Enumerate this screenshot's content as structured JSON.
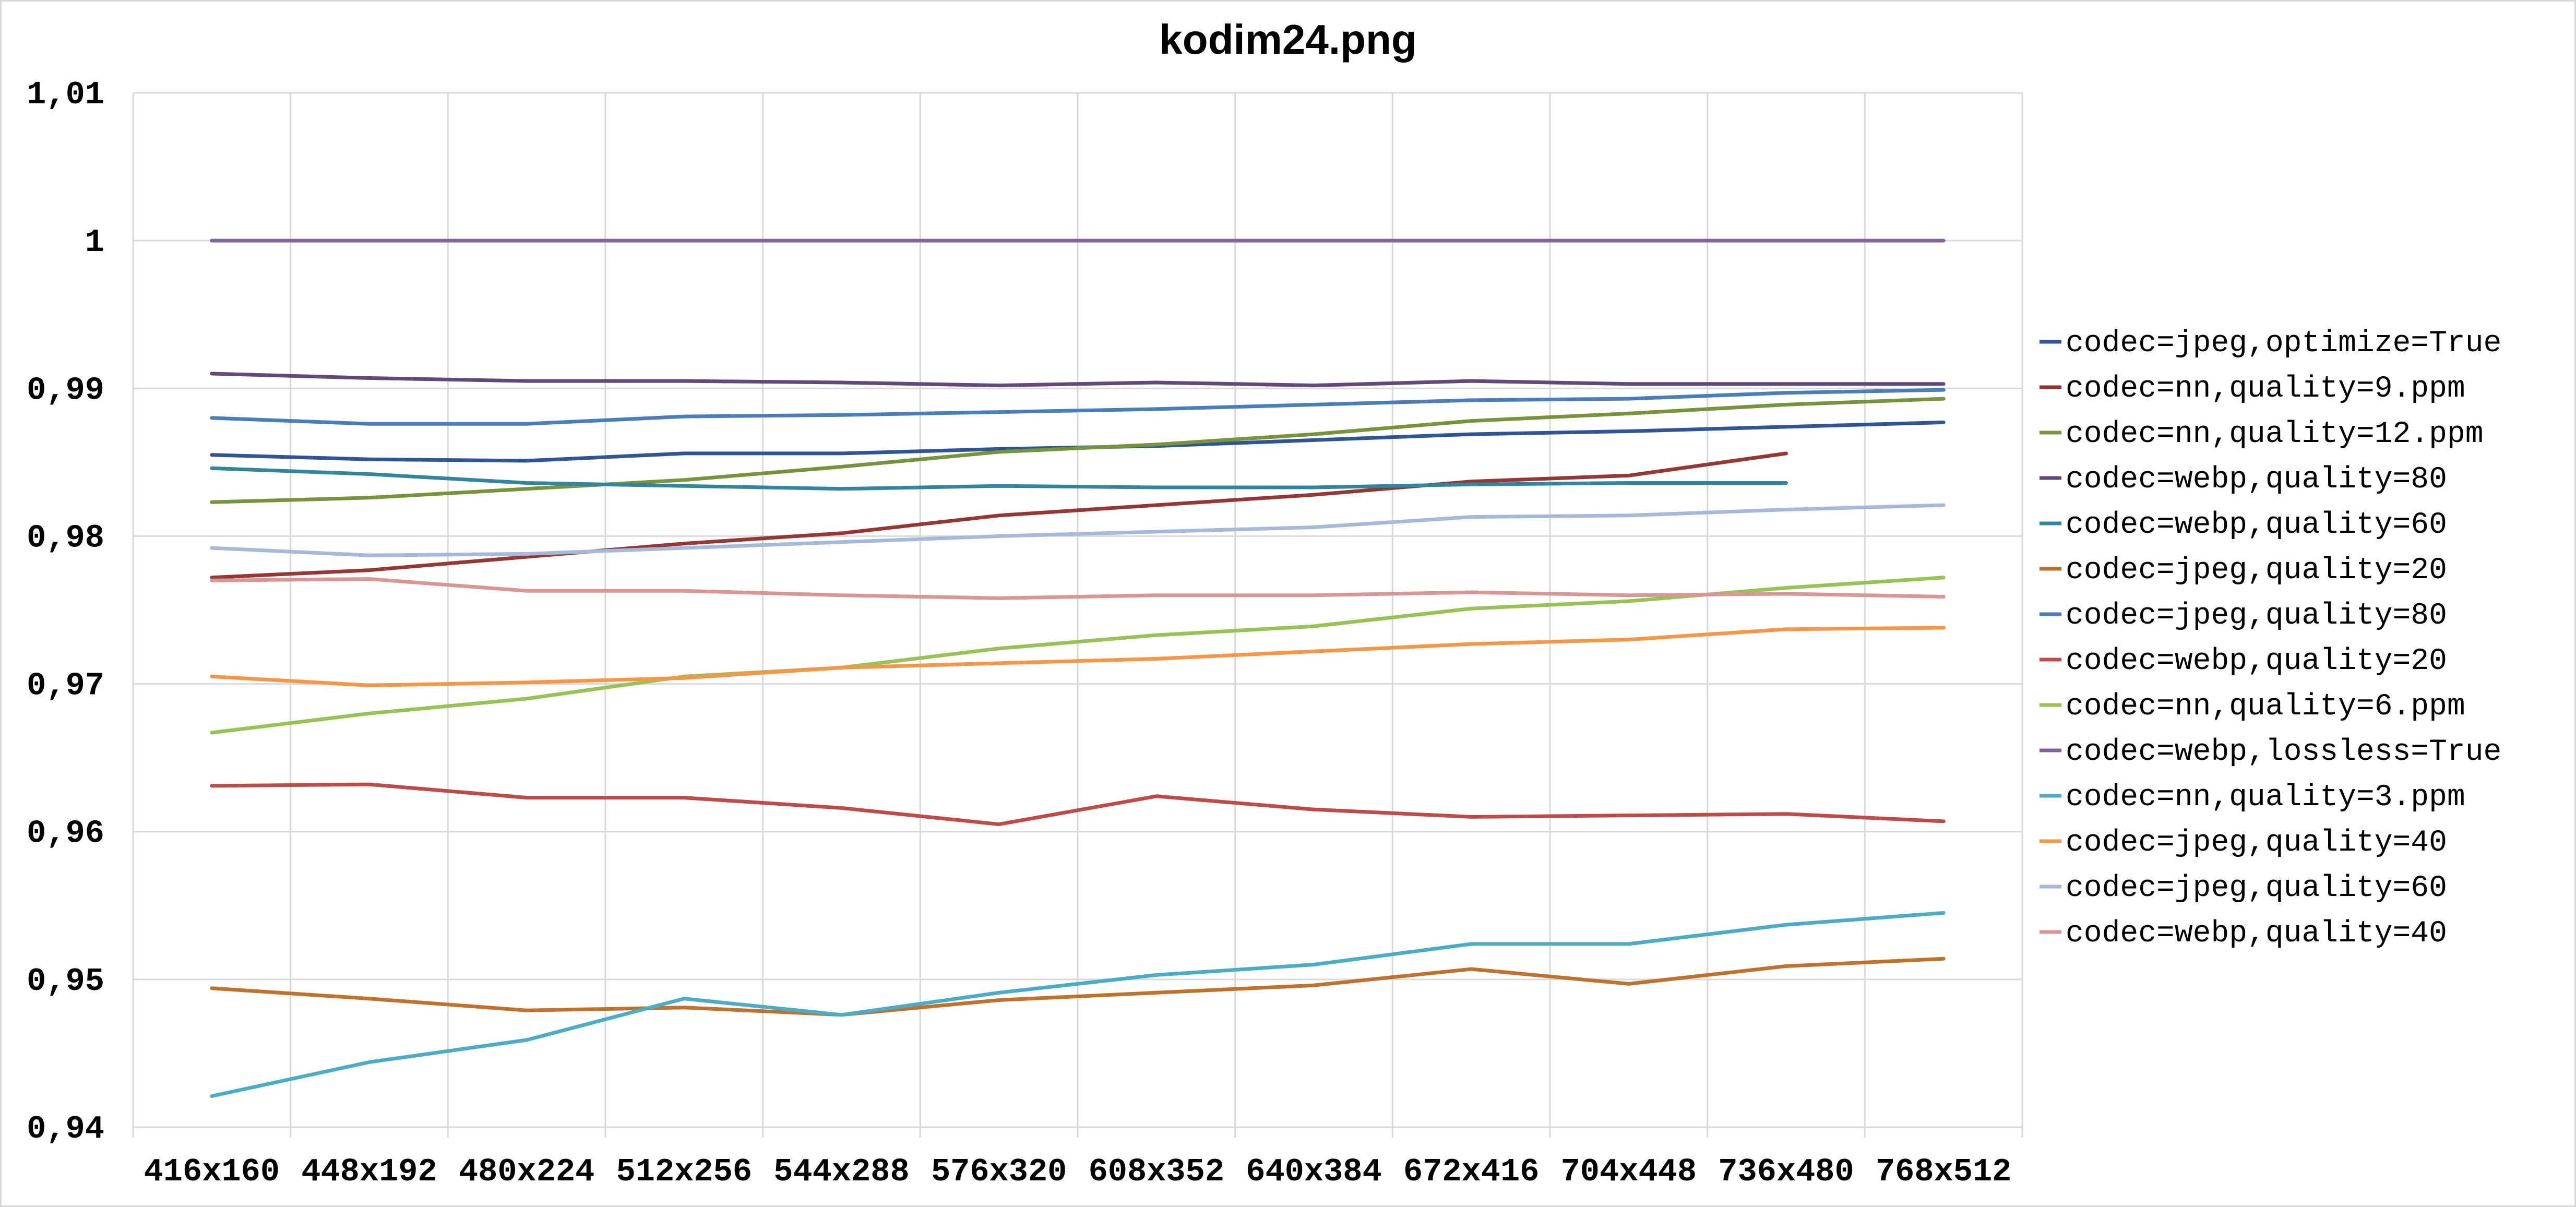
{
  "chart_data": {
    "type": "line",
    "title": "kodim24.png",
    "xlabel": "",
    "ylabel": "",
    "categories": [
      "416x160",
      "448x192",
      "480x224",
      "512x256",
      "544x288",
      "576x320",
      "608x352",
      "640x384",
      "672x416",
      "704x448",
      "736x480",
      "768x512"
    ],
    "y_tick_labels": [
      "0,94",
      "0,95",
      "0,96",
      "0,97",
      "0,98",
      "0,99",
      "1",
      "1,01"
    ],
    "ylim": [
      0.94,
      1.01
    ],
    "grid": true,
    "legend_position": "right",
    "series": [
      {
        "name": "codec=jpeg,optimize=True",
        "color": "#2f5597",
        "values": [
          0.9855,
          0.9852,
          0.9851,
          0.9856,
          0.9856,
          0.9859,
          0.9861,
          0.9865,
          0.9869,
          0.9871,
          0.9874,
          0.9877
        ]
      },
      {
        "name": "codec=nn,quality=9.ppm",
        "color": "#953735",
        "values": [
          0.9772,
          0.9777,
          0.9786,
          0.9795,
          0.9802,
          0.9814,
          0.9821,
          0.9828,
          0.9837,
          0.9841,
          0.9856,
          null
        ]
      },
      {
        "name": "codec=nn,quality=12.ppm",
        "color": "#77933c",
        "values": [
          0.9823,
          0.9826,
          0.9832,
          0.9838,
          0.9847,
          0.9857,
          0.9862,
          0.9869,
          0.9878,
          0.9883,
          0.9889,
          0.9893
        ]
      },
      {
        "name": "codec=webp,quality=80",
        "color": "#604a7b",
        "values": [
          0.991,
          0.9907,
          0.9905,
          0.9905,
          0.9904,
          0.9902,
          0.9904,
          0.9902,
          0.9905,
          0.9903,
          0.9903,
          0.9903
        ]
      },
      {
        "name": "codec=webp,quality=60",
        "color": "#31859c",
        "values": [
          0.9846,
          0.9842,
          0.9836,
          0.9834,
          0.9832,
          0.9834,
          0.9833,
          0.9833,
          0.9835,
          0.9836,
          0.9836,
          null
        ]
      },
      {
        "name": "codec=jpeg,quality=20",
        "color": "#c0722d",
        "values": [
          0.9494,
          0.9487,
          0.9479,
          0.9481,
          0.9476,
          0.9486,
          0.9491,
          0.9496,
          0.9507,
          0.9497,
          0.9509,
          0.9514
        ]
      },
      {
        "name": "codec=jpeg,quality=80",
        "color": "#4a7ebb",
        "values": [
          0.988,
          0.9876,
          0.9876,
          0.9881,
          0.9882,
          0.9884,
          0.9886,
          0.9889,
          0.9892,
          0.9893,
          0.9897,
          0.9899
        ]
      },
      {
        "name": "codec=webp,quality=20",
        "color": "#be4b48",
        "values": [
          0.9631,
          0.9632,
          0.9623,
          0.9623,
          0.9616,
          0.9605,
          0.9624,
          0.9615,
          0.961,
          0.9611,
          0.9612,
          0.9607
        ]
      },
      {
        "name": "codec=nn,quality=6.ppm",
        "color": "#98c156",
        "values": [
          0.9667,
          0.968,
          0.969,
          0.9705,
          0.9711,
          0.9724,
          0.9733,
          0.9739,
          0.9751,
          0.9756,
          0.9765,
          0.9772
        ]
      },
      {
        "name": "codec=webp,lossless=True",
        "color": "#7e64a1",
        "values": [
          1.0,
          1.0,
          1.0,
          1.0,
          1.0,
          1.0,
          1.0,
          1.0,
          1.0,
          1.0,
          1.0,
          1.0
        ]
      },
      {
        "name": "codec=nn,quality=3.ppm",
        "color": "#4bacc6",
        "values": [
          0.9421,
          0.9444,
          0.9459,
          0.9487,
          0.9476,
          0.9491,
          0.9503,
          0.951,
          0.9524,
          0.9524,
          0.9537,
          0.9545
        ]
      },
      {
        "name": "codec=jpeg,quality=40",
        "color": "#f79646",
        "values": [
          0.9705,
          0.9699,
          0.9701,
          0.9704,
          0.9711,
          0.9714,
          0.9717,
          0.9722,
          0.9727,
          0.973,
          0.9737,
          0.9738
        ]
      },
      {
        "name": "codec=jpeg,quality=60",
        "color": "#a7b9db",
        "values": [
          0.9792,
          0.9787,
          0.9788,
          0.9792,
          0.9796,
          0.98,
          0.9803,
          0.9806,
          0.9813,
          0.9814,
          0.9818,
          0.9821
        ]
      },
      {
        "name": "codec=webp,quality=40",
        "color": "#d99694",
        "values": [
          0.977,
          0.9771,
          0.9763,
          0.9763,
          0.976,
          0.9758,
          0.976,
          0.976,
          0.9762,
          0.976,
          0.9761,
          0.9759
        ]
      }
    ]
  }
}
